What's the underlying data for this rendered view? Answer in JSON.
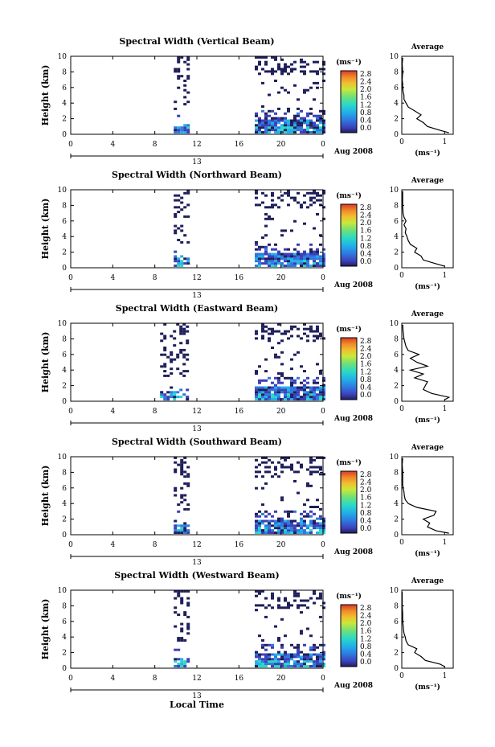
{
  "figure": {
    "xlabel": "Local Time",
    "avg_title": "Average",
    "avg_xlabel": "(ms⁻¹)",
    "avg_xticks": [
      "0",
      "1"
    ],
    "ylabel": "Height (km)",
    "yticks": [
      "0",
      "2",
      "4",
      "6",
      "8",
      "10"
    ],
    "xticks": [
      "0",
      "4",
      "8",
      "12",
      "16",
      "20",
      "0"
    ],
    "day_label": "13",
    "date_label": "Aug 2008",
    "colorbar_unit": "(ms⁻¹)",
    "colorbar_ticks": [
      "0.0",
      "0.4",
      "0.8",
      "1.2",
      "1.6",
      "2.0",
      "2.4",
      "2.8"
    ],
    "colorbar_colors": [
      "#1e1e5a",
      "#3d3fb8",
      "#2f78e0",
      "#22b0e8",
      "#2ad8c8",
      "#6ee07a",
      "#c8e83a",
      "#f0c030",
      "#f08a2a",
      "#d83a2a"
    ]
  },
  "chart_data": [
    {
      "type": "heatmap",
      "title": "Spectral Width (Vertical Beam)",
      "xlabel": "",
      "ylabel": "Height (km)",
      "xlim": [
        0,
        24
      ],
      "ylim": [
        0,
        10
      ],
      "value_range": [
        0,
        2.8
      ],
      "observation_windows_hours": [
        [
          9.8,
          11.2
        ],
        [
          17.5,
          24
        ]
      ],
      "average_profile": {
        "xlim": [
          0,
          1.2
        ],
        "height_km": [
          0.2,
          0.5,
          1.0,
          1.5,
          2.0,
          2.5,
          3.0,
          3.5,
          4.0,
          4.5,
          5.0,
          5.5,
          6.0,
          6.5,
          7.0,
          8.0,
          9.0,
          9.8
        ],
        "width_ms": [
          1.1,
          0.9,
          0.6,
          0.5,
          0.35,
          0.45,
          0.3,
          0.15,
          0.1,
          0.05,
          0.05,
          0.03,
          0.02,
          0.02,
          0.01,
          0.02,
          0.01,
          0.02
        ]
      }
    },
    {
      "type": "heatmap",
      "title": "Spectral Width (Northward Beam)",
      "xlabel": "",
      "ylabel": "Height (km)",
      "xlim": [
        0,
        24
      ],
      "ylim": [
        0,
        10
      ],
      "value_range": [
        0,
        2.8
      ],
      "observation_windows_hours": [
        [
          9.8,
          11.2
        ],
        [
          17.5,
          24
        ]
      ],
      "average_profile": {
        "xlim": [
          0,
          1.2
        ],
        "height_km": [
          0.2,
          0.5,
          1.0,
          1.5,
          2.0,
          2.5,
          3.0,
          3.5,
          4.0,
          4.5,
          5.0,
          5.5,
          6.0,
          6.5,
          7.0,
          8.0,
          9.0,
          9.8
        ],
        "width_ms": [
          1.0,
          0.8,
          0.5,
          0.45,
          0.3,
          0.35,
          0.2,
          0.15,
          0.12,
          0.08,
          0.1,
          0.05,
          0.1,
          0.05,
          0.03,
          0.02,
          0.02,
          0.02
        ]
      }
    },
    {
      "type": "heatmap",
      "title": "Spectral Width (Eastward Beam)",
      "xlabel": "",
      "ylabel": "Height (km)",
      "xlim": [
        0,
        24
      ],
      "ylim": [
        0,
        10
      ],
      "value_range": [
        0,
        2.8
      ],
      "observation_windows_hours": [
        [
          8.5,
          11.2
        ],
        [
          17.5,
          24
        ]
      ],
      "average_profile": {
        "xlim": [
          0,
          1.2
        ],
        "height_km": [
          0.2,
          0.5,
          1.0,
          1.5,
          2.0,
          2.5,
          3.0,
          3.5,
          4.0,
          4.5,
          5.0,
          5.5,
          6.0,
          6.5,
          7.0,
          8.0,
          9.0,
          9.8
        ],
        "width_ms": [
          1.0,
          1.1,
          0.7,
          0.5,
          0.55,
          0.6,
          0.3,
          0.5,
          0.2,
          0.6,
          0.35,
          0.2,
          0.4,
          0.15,
          0.1,
          0.05,
          0.03,
          0.02
        ]
      }
    },
    {
      "type": "heatmap",
      "title": "Spectral Width (Southward Beam)",
      "xlabel": "",
      "ylabel": "Height (km)",
      "xlim": [
        0,
        24
      ],
      "ylim": [
        0,
        10
      ],
      "value_range": [
        0,
        2.8
      ],
      "observation_windows_hours": [
        [
          9.8,
          11.2
        ],
        [
          17.5,
          24
        ]
      ],
      "average_profile": {
        "xlim": [
          0,
          1.2
        ],
        "height_km": [
          0.2,
          0.5,
          1.0,
          1.5,
          2.0,
          2.5,
          3.0,
          3.5,
          4.0,
          4.5,
          5.0,
          5.5,
          6.0,
          6.5,
          7.0,
          8.0,
          9.0,
          9.8
        ],
        "width_ms": [
          1.1,
          0.8,
          0.6,
          0.65,
          0.5,
          0.75,
          0.8,
          0.35,
          0.15,
          0.08,
          0.06,
          0.05,
          0.03,
          0.02,
          0.02,
          0.02,
          0.01,
          0.02
        ]
      }
    },
    {
      "type": "heatmap",
      "title": "Spectral Width (Westward Beam)",
      "xlabel": "Local Time",
      "ylabel": "Height (km)",
      "xlim": [
        0,
        24
      ],
      "ylim": [
        0,
        10
      ],
      "value_range": [
        0,
        2.8
      ],
      "observation_windows_hours": [
        [
          9.8,
          11.2
        ],
        [
          17.5,
          24
        ]
      ],
      "average_profile": {
        "xlim": [
          0,
          1.2
        ],
        "height_km": [
          0.2,
          0.5,
          1.0,
          1.5,
          2.0,
          2.5,
          3.0,
          3.5,
          4.0,
          4.5,
          5.0,
          5.5,
          6.0,
          6.5,
          7.0,
          8.0,
          9.0,
          9.8
        ],
        "width_ms": [
          1.0,
          0.9,
          0.55,
          0.45,
          0.3,
          0.35,
          0.15,
          0.1,
          0.08,
          0.05,
          0.04,
          0.03,
          0.02,
          0.02,
          0.02,
          0.01,
          0.01,
          0.01
        ]
      }
    }
  ]
}
